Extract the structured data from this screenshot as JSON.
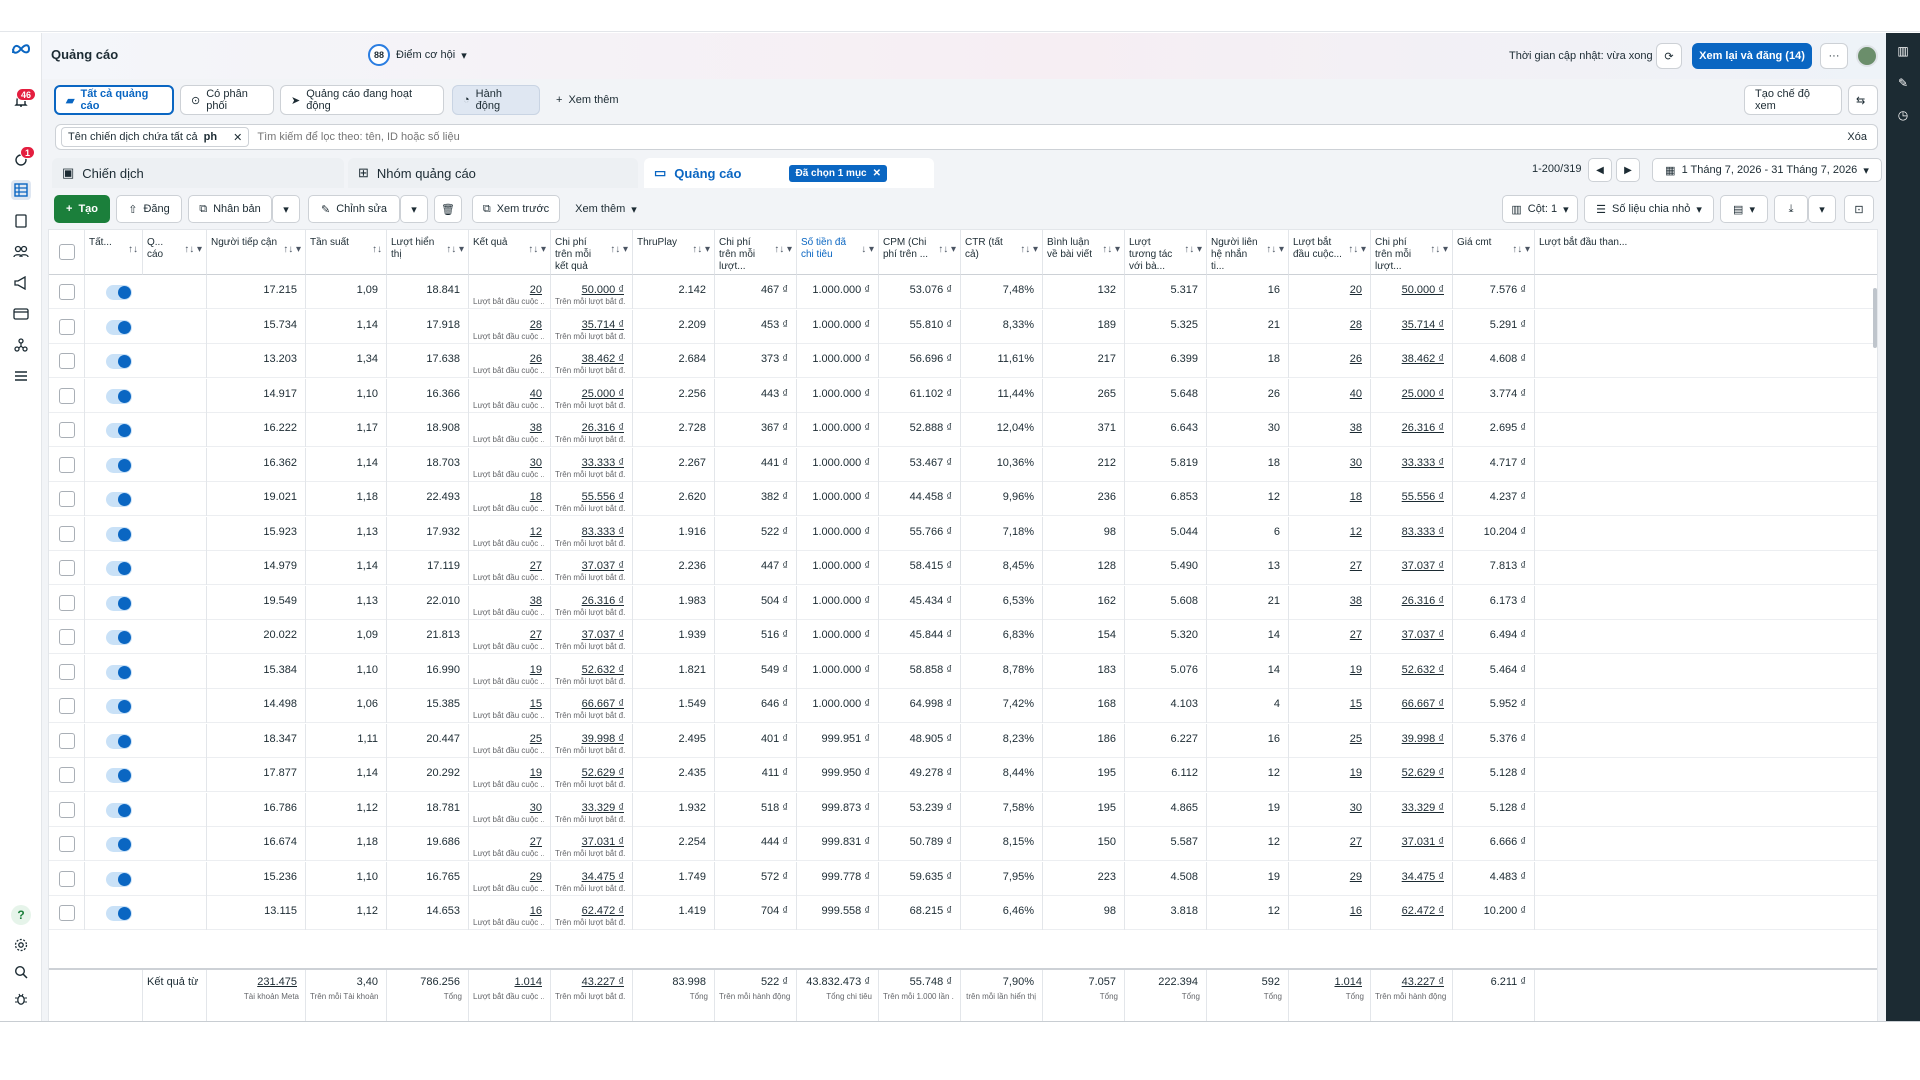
{
  "header": {
    "title": "Quảng cáo",
    "score_value": "88",
    "score_label": "Điểm cơ hội",
    "updated": "Thời gian cập nhật: vừa xong",
    "review_button": "Xem lại và đăng (14)",
    "more": "···"
  },
  "nav": {
    "notifications_badge": "46",
    "alerts_badge": "1"
  },
  "tabs": {
    "all_ads": "Tất cả quảng cáo",
    "delivery": "Có phân phối",
    "active": "Quảng cáo đang hoạt động",
    "actions": "Hành động",
    "more": "Xem thêm",
    "create_view": "Tạo chế độ xem"
  },
  "filter": {
    "chip": "Tên chiến dịch chứa tất cả",
    "chip_value": "ph",
    "placeholder": "Tìm kiếm để lọc theo: tên, ID hoặc số liệu",
    "clear": "Xóa"
  },
  "levels": {
    "campaign": "Chiến dịch",
    "adset": "Nhóm quảng cáo",
    "ad": "Quảng cáo",
    "selected": "Đã chọn 1 mục",
    "pager": "1-200/319",
    "date_range": "1 Tháng 7, 2026 - 31 Tháng 7, 2026"
  },
  "toolbar": {
    "create": "Tạo",
    "publish": "Đăng",
    "duplicate": "Nhân bản",
    "edit": "Chỉnh sửa",
    "preview": "Xem trước",
    "more": "Xem thêm",
    "columns": "Cột: 1",
    "breakdown": "Số liệu chia nhỏ"
  },
  "columns": [
    {
      "label": "Tất...",
      "sort": "↑↓"
    },
    {
      "label": "Q... cáo",
      "sort": "↑↓ ▾"
    },
    {
      "label": "Người tiếp cận",
      "sort": "↑↓ ▾"
    },
    {
      "label": "Tần suất",
      "sort": "↑↓"
    },
    {
      "label": "Lượt hiển thị",
      "sort": "↑↓ ▾"
    },
    {
      "label": "Kết quả",
      "sort": "↑↓ ▾"
    },
    {
      "label": "Chi phí trên mỗi kết quả",
      "sort": "↑↓ ▾"
    },
    {
      "label": "ThruPlay",
      "sort": "↑↓ ▾"
    },
    {
      "label": "Chi phí trên mỗi lượt...",
      "sort": "↑↓ ▾"
    },
    {
      "label": "Số tiền đã chi tiêu",
      "sort": "↓ ▾"
    },
    {
      "label": "CPM (Chi phí trên ...",
      "sort": "↑↓ ▾"
    },
    {
      "label": "CTR (tất cả)",
      "sort": "↑↓ ▾"
    },
    {
      "label": "Bình luận về bài viết",
      "sort": "↑↓ ▾"
    },
    {
      "label": "Lượt tương tác với bà...",
      "sort": "↑↓ ▾"
    },
    {
      "label": "Người liên hệ nhắn ti...",
      "sort": "↑↓ ▾"
    },
    {
      "label": "Lượt bắt đầu cuộc...",
      "sort": "↑↓ ▾"
    },
    {
      "label": "Chi phí trên mỗi lượt...",
      "sort": "↑↓ ▾"
    },
    {
      "label": "Giá cmt",
      "sort": "↑↓ ▾"
    },
    {
      "label": "Lượt bắt đầu than...",
      "sort": ""
    }
  ],
  "result_sub": "Lượt bắt đầu cuộc ...",
  "cpr_sub": "Trên mỗi lượt bắt đ...",
  "rows": [
    [
      "17.215",
      "1,09",
      "18.841",
      "20",
      "50.000 ₫",
      "2.142",
      "467 ₫",
      "1.000.000 ₫",
      "53.076 ₫",
      "7,48%",
      "132",
      "5.317",
      "16",
      "20",
      "50.000 ₫",
      "7.576 ₫"
    ],
    [
      "15.734",
      "1,14",
      "17.918",
      "28",
      "35.714 ₫",
      "2.209",
      "453 ₫",
      "1.000.000 ₫",
      "55.810 ₫",
      "8,33%",
      "189",
      "5.325",
      "21",
      "28",
      "35.714 ₫",
      "5.291 ₫"
    ],
    [
      "13.203",
      "1,34",
      "17.638",
      "26",
      "38.462 ₫",
      "2.684",
      "373 ₫",
      "1.000.000 ₫",
      "56.696 ₫",
      "11,61%",
      "217",
      "6.399",
      "18",
      "26",
      "38.462 ₫",
      "4.608 ₫"
    ],
    [
      "14.917",
      "1,10",
      "16.366",
      "40",
      "25.000 ₫",
      "2.256",
      "443 ₫",
      "1.000.000 ₫",
      "61.102 ₫",
      "11,44%",
      "265",
      "5.648",
      "26",
      "40",
      "25.000 ₫",
      "3.774 ₫"
    ],
    [
      "16.222",
      "1,17",
      "18.908",
      "38",
      "26.316 ₫",
      "2.728",
      "367 ₫",
      "1.000.000 ₫",
      "52.888 ₫",
      "12,04%",
      "371",
      "6.643",
      "30",
      "38",
      "26.316 ₫",
      "2.695 ₫"
    ],
    [
      "16.362",
      "1,14",
      "18.703",
      "30",
      "33.333 ₫",
      "2.267",
      "441 ₫",
      "1.000.000 ₫",
      "53.467 ₫",
      "10,36%",
      "212",
      "5.819",
      "18",
      "30",
      "33.333 ₫",
      "4.717 ₫"
    ],
    [
      "19.021",
      "1,18",
      "22.493",
      "18",
      "55.556 ₫",
      "2.620",
      "382 ₫",
      "1.000.000 ₫",
      "44.458 ₫",
      "9,96%",
      "236",
      "6.853",
      "12",
      "18",
      "55.556 ₫",
      "4.237 ₫"
    ],
    [
      "15.923",
      "1,13",
      "17.932",
      "12",
      "83.333 ₫",
      "1.916",
      "522 ₫",
      "1.000.000 ₫",
      "55.766 ₫",
      "7,18%",
      "98",
      "5.044",
      "6",
      "12",
      "83.333 ₫",
      "10.204 ₫"
    ],
    [
      "14.979",
      "1,14",
      "17.119",
      "27",
      "37.037 ₫",
      "2.236",
      "447 ₫",
      "1.000.000 ₫",
      "58.415 ₫",
      "8,45%",
      "128",
      "5.490",
      "13",
      "27",
      "37.037 ₫",
      "7.813 ₫"
    ],
    [
      "19.549",
      "1,13",
      "22.010",
      "38",
      "26.316 ₫",
      "1.983",
      "504 ₫",
      "1.000.000 ₫",
      "45.434 ₫",
      "6,53%",
      "162",
      "5.608",
      "21",
      "38",
      "26.316 ₫",
      "6.173 ₫"
    ],
    [
      "20.022",
      "1,09",
      "21.813",
      "27",
      "37.037 ₫",
      "1.939",
      "516 ₫",
      "1.000.000 ₫",
      "45.844 ₫",
      "6,83%",
      "154",
      "5.320",
      "14",
      "27",
      "37.037 ₫",
      "6.494 ₫"
    ],
    [
      "15.384",
      "1,10",
      "16.990",
      "19",
      "52.632 ₫",
      "1.821",
      "549 ₫",
      "1.000.000 ₫",
      "58.858 ₫",
      "8,78%",
      "183",
      "5.076",
      "14",
      "19",
      "52.632 ₫",
      "5.464 ₫"
    ],
    [
      "14.498",
      "1,06",
      "15.385",
      "15",
      "66.667 ₫",
      "1.549",
      "646 ₫",
      "1.000.000 ₫",
      "64.998 ₫",
      "7,42%",
      "168",
      "4.103",
      "4",
      "15",
      "66.667 ₫",
      "5.952 ₫"
    ],
    [
      "18.347",
      "1,11",
      "20.447",
      "25",
      "39.998 ₫",
      "2.495",
      "401 ₫",
      "999.951 ₫",
      "48.905 ₫",
      "8,23%",
      "186",
      "6.227",
      "16",
      "25",
      "39.998 ₫",
      "5.376 ₫"
    ],
    [
      "17.877",
      "1,14",
      "20.292",
      "19",
      "52.629 ₫",
      "2.435",
      "411 ₫",
      "999.950 ₫",
      "49.278 ₫",
      "8,44%",
      "195",
      "6.112",
      "12",
      "19",
      "52.629 ₫",
      "5.128 ₫"
    ],
    [
      "16.786",
      "1,12",
      "18.781",
      "30",
      "33.329 ₫",
      "1.932",
      "518 ₫",
      "999.873 ₫",
      "53.239 ₫",
      "7,58%",
      "195",
      "4.865",
      "19",
      "30",
      "33.329 ₫",
      "5.128 ₫"
    ],
    [
      "16.674",
      "1,18",
      "19.686",
      "27",
      "37.031 ₫",
      "2.254",
      "444 ₫",
      "999.831 ₫",
      "50.789 ₫",
      "8,15%",
      "150",
      "5.587",
      "12",
      "27",
      "37.031 ₫",
      "6.666 ₫"
    ],
    [
      "15.236",
      "1,10",
      "16.765",
      "29",
      "34.475 ₫",
      "1.749",
      "572 ₫",
      "999.778 ₫",
      "59.635 ₫",
      "7,95%",
      "223",
      "4.508",
      "19",
      "29",
      "34.475 ₫",
      "4.483 ₫"
    ],
    [
      "13.115",
      "1,12",
      "14.653",
      "16",
      "62.472 ₫",
      "1.419",
      "704 ₫",
      "999.558 ₫",
      "68.215 ₫",
      "6,46%",
      "98",
      "3.818",
      "12",
      "16",
      "62.472 ₫",
      "10.200 ₫"
    ]
  ],
  "totals": {
    "label": "Kết quả từ",
    "values": [
      "231.475",
      "3,40",
      "786.256",
      "1.014",
      "43.227 ₫",
      "83.998",
      "522 ₫",
      "43.832.473 ₫",
      "55.748 ₫",
      "7,90%",
      "7.057",
      "222.394",
      "592",
      "1.014",
      "43.227 ₫",
      "6.211 ₫"
    ],
    "subs": [
      "Tài khoản Meta",
      "Trên mỗi Tài khoản ...",
      "Tổng",
      "Lượt bắt đầu cuộc ...",
      "Trên mỗi lượt bắt đ...",
      "Tổng",
      "Trên mỗi hành động",
      "Tổng chi tiêu",
      "Trên mỗi 1.000 lần ...",
      "trên mỗi lần hiển thị",
      "Tổng",
      "Tổng",
      "Tổng",
      "Tổng",
      "Trên mỗi hành động",
      ""
    ]
  }
}
